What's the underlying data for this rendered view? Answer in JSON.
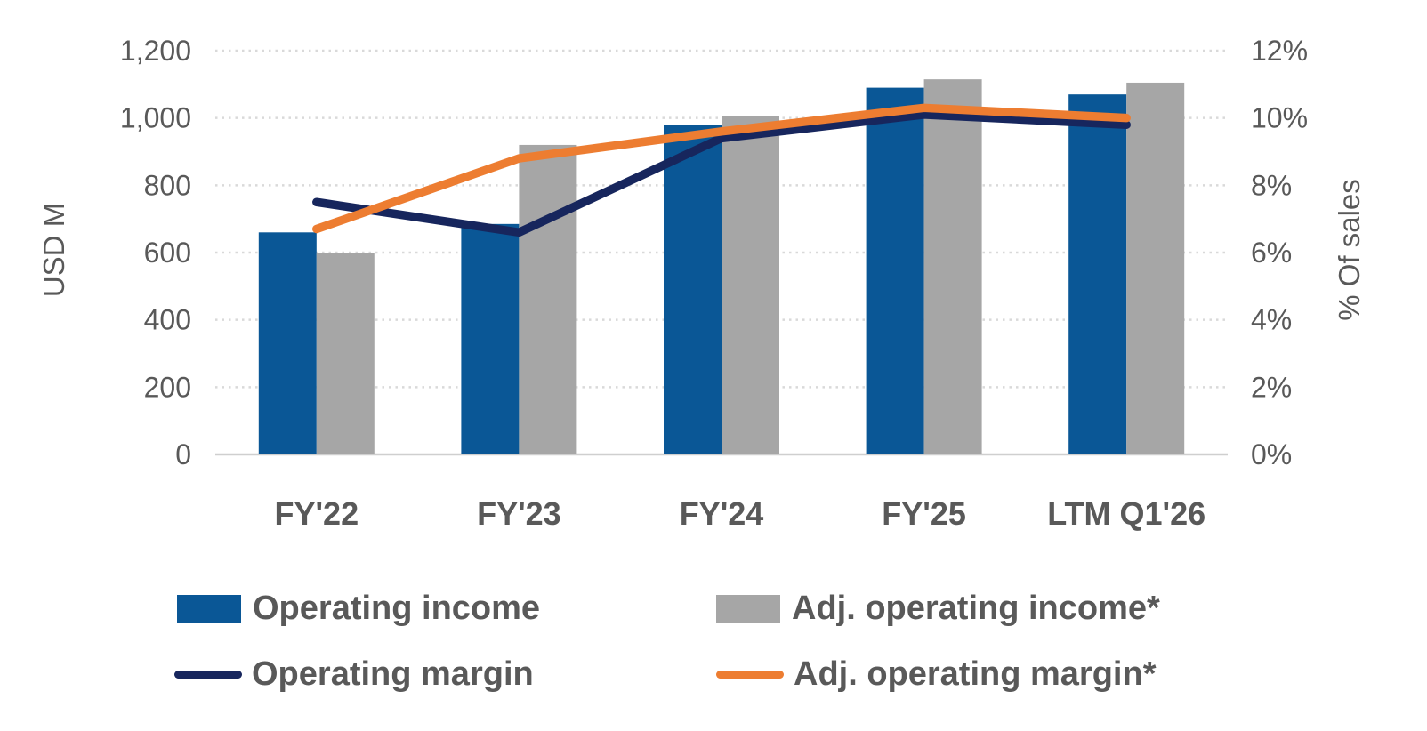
{
  "chart_data": {
    "type": "combo",
    "title": "",
    "categories": [
      "FY'22",
      "FY'23",
      "FY'24",
      "FY'25",
      "LTM Q1'26"
    ],
    "series": [
      {
        "name": "Operating income",
        "type": "bar",
        "axis": "left",
        "color": "#0A5796",
        "values": [
          660,
          685,
          980,
          1090,
          1070
        ],
        "unit": "USD M"
      },
      {
        "name": "Adj. operating income*",
        "type": "bar",
        "axis": "left",
        "color": "#A6A6A6",
        "values": [
          600,
          920,
          1005,
          1115,
          1105
        ],
        "unit": "USD M"
      },
      {
        "name": "Operating margin",
        "type": "line",
        "axis": "right",
        "color": "#17265D",
        "values": [
          7.5,
          6.6,
          9.4,
          10.1,
          9.8
        ],
        "unit": "%"
      },
      {
        "name": "Adj. operating margin*",
        "type": "line",
        "axis": "right",
        "color": "#ED7D31",
        "values": [
          6.7,
          8.8,
          9.6,
          10.3,
          10.0
        ],
        "unit": "%"
      }
    ],
    "left_axis": {
      "title": "USD M",
      "min": 0,
      "max": 1200,
      "tick_step": 200,
      "tick_labels": [
        "0",
        "200",
        "400",
        "600",
        "800",
        "1,000",
        "1,200"
      ]
    },
    "right_axis": {
      "title": "% Of sales",
      "min": 0,
      "max": 12,
      "tick_step": 2,
      "tick_labels": [
        "0%",
        "2%",
        "4%",
        "6%",
        "8%",
        "10%",
        "12%"
      ]
    },
    "grid": {
      "horizontal": "dotted",
      "vertical": "none"
    },
    "legend_position": "bottom-two-columns"
  },
  "colors": {
    "text": "#595959",
    "gridline": "#D9D9D9",
    "axis_line": "#CFCFCF",
    "background": "#FFFFFF"
  }
}
